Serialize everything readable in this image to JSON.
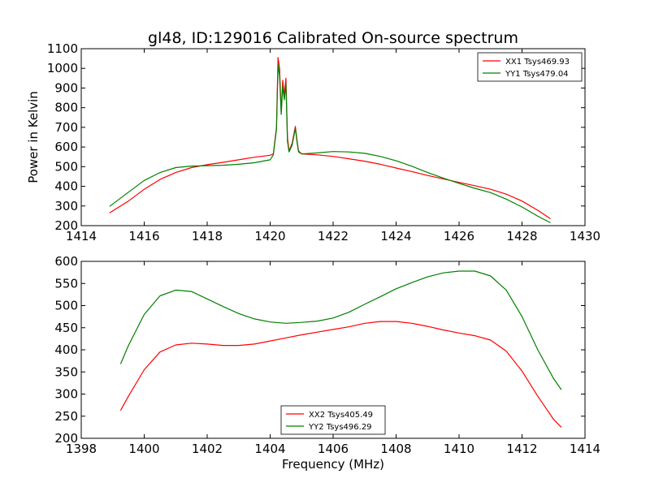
{
  "chart_data": [
    {
      "type": "line",
      "title": "gl48, ID:129016 Calibrated On-source spectrum",
      "xlabel": "",
      "ylabel": "Power in Kelvin",
      "xlim": [
        1414,
        1430
      ],
      "ylim": [
        200,
        1100
      ],
      "xticks": [
        1414,
        1416,
        1418,
        1420,
        1422,
        1424,
        1426,
        1428,
        1430
      ],
      "yticks": [
        200,
        300,
        400,
        500,
        600,
        700,
        800,
        900,
        1000,
        1100
      ],
      "legend_placement": "top-right",
      "series": [
        {
          "name": "XX1 Tsys469.93",
          "color": "#ff0000",
          "x": [
            1414.9,
            1415.5,
            1416.0,
            1416.5,
            1417.0,
            1417.5,
            1418.0,
            1418.5,
            1419.0,
            1419.5,
            1420.0,
            1420.1,
            1420.2,
            1420.25,
            1420.3,
            1420.35,
            1420.4,
            1420.45,
            1420.5,
            1420.55,
            1420.6,
            1420.7,
            1420.8,
            1420.85,
            1420.9,
            1421.0,
            1421.5,
            1422.0,
            1422.5,
            1423.0,
            1423.5,
            1424.0,
            1424.5,
            1425.0,
            1425.5,
            1426.0,
            1426.5,
            1427.0,
            1427.5,
            1428.0,
            1428.5,
            1428.9
          ],
          "y": [
            265,
            325,
            385,
            435,
            470,
            495,
            510,
            522,
            535,
            548,
            558,
            565,
            700,
            1055,
            1000,
            780,
            940,
            860,
            950,
            650,
            580,
            620,
            705,
            640,
            580,
            565,
            560,
            552,
            540,
            528,
            512,
            493,
            475,
            455,
            438,
            420,
            403,
            385,
            360,
            325,
            278,
            235
          ]
        },
        {
          "name": "YY1 Tsys479.04",
          "color": "#008000",
          "x": [
            1414.9,
            1415.5,
            1416.0,
            1416.5,
            1417.0,
            1417.5,
            1418.0,
            1418.5,
            1419.0,
            1419.5,
            1420.0,
            1420.1,
            1420.2,
            1420.25,
            1420.3,
            1420.35,
            1420.4,
            1420.45,
            1420.5,
            1420.55,
            1420.6,
            1420.7,
            1420.8,
            1420.85,
            1420.9,
            1421.0,
            1421.5,
            1422.0,
            1422.5,
            1423.0,
            1423.5,
            1424.0,
            1424.5,
            1425.0,
            1425.5,
            1426.0,
            1426.5,
            1427.0,
            1427.5,
            1428.0,
            1428.5,
            1428.9
          ],
          "y": [
            298,
            370,
            430,
            470,
            495,
            503,
            505,
            507,
            512,
            520,
            535,
            560,
            690,
            1020,
            960,
            765,
            910,
            840,
            920,
            630,
            575,
            610,
            695,
            630,
            575,
            565,
            570,
            577,
            575,
            568,
            552,
            530,
            502,
            470,
            442,
            415,
            390,
            368,
            335,
            295,
            248,
            215
          ]
        }
      ]
    },
    {
      "type": "line",
      "title": "",
      "xlabel": "Frequency (MHz)",
      "ylabel": "",
      "xlim": [
        1398,
        1414
      ],
      "ylim": [
        200,
        600
      ],
      "xticks": [
        1398,
        1400,
        1402,
        1404,
        1406,
        1408,
        1410,
        1412,
        1414
      ],
      "yticks": [
        200,
        250,
        300,
        350,
        400,
        450,
        500,
        550,
        600
      ],
      "legend_placement": "bottom-center",
      "series": [
        {
          "name": "XX2 Tsys405.49",
          "color": "#ff0000",
          "x": [
            1399.25,
            1399.5,
            1400.0,
            1400.5,
            1401.0,
            1401.5,
            1402.0,
            1402.5,
            1403.0,
            1403.5,
            1404.0,
            1404.5,
            1405.0,
            1405.5,
            1406.0,
            1406.5,
            1407.0,
            1407.5,
            1408.0,
            1408.5,
            1409.0,
            1409.5,
            1410.0,
            1410.5,
            1411.0,
            1411.5,
            1412.0,
            1412.5,
            1413.0,
            1413.25
          ],
          "y": [
            263,
            295,
            355,
            395,
            411,
            415,
            413,
            410,
            410,
            413,
            420,
            427,
            434,
            440,
            446,
            452,
            460,
            464,
            464,
            460,
            453,
            445,
            438,
            432,
            422,
            397,
            352,
            295,
            243,
            225
          ]
        },
        {
          "name": "YY2 Tsys496.29",
          "color": "#008000",
          "x": [
            1399.25,
            1399.5,
            1400.0,
            1400.5,
            1401.0,
            1401.5,
            1402.0,
            1402.5,
            1403.0,
            1403.5,
            1404.0,
            1404.5,
            1405.0,
            1405.5,
            1406.0,
            1406.5,
            1407.0,
            1407.5,
            1408.0,
            1408.5,
            1409.0,
            1409.5,
            1410.0,
            1410.5,
            1411.0,
            1411.5,
            1412.0,
            1412.5,
            1413.0,
            1413.25
          ],
          "y": [
            368,
            410,
            480,
            522,
            535,
            532,
            515,
            498,
            482,
            470,
            463,
            460,
            462,
            465,
            472,
            485,
            503,
            520,
            538,
            552,
            565,
            574,
            578,
            578,
            567,
            535,
            475,
            400,
            335,
            310
          ]
        }
      ]
    }
  ]
}
